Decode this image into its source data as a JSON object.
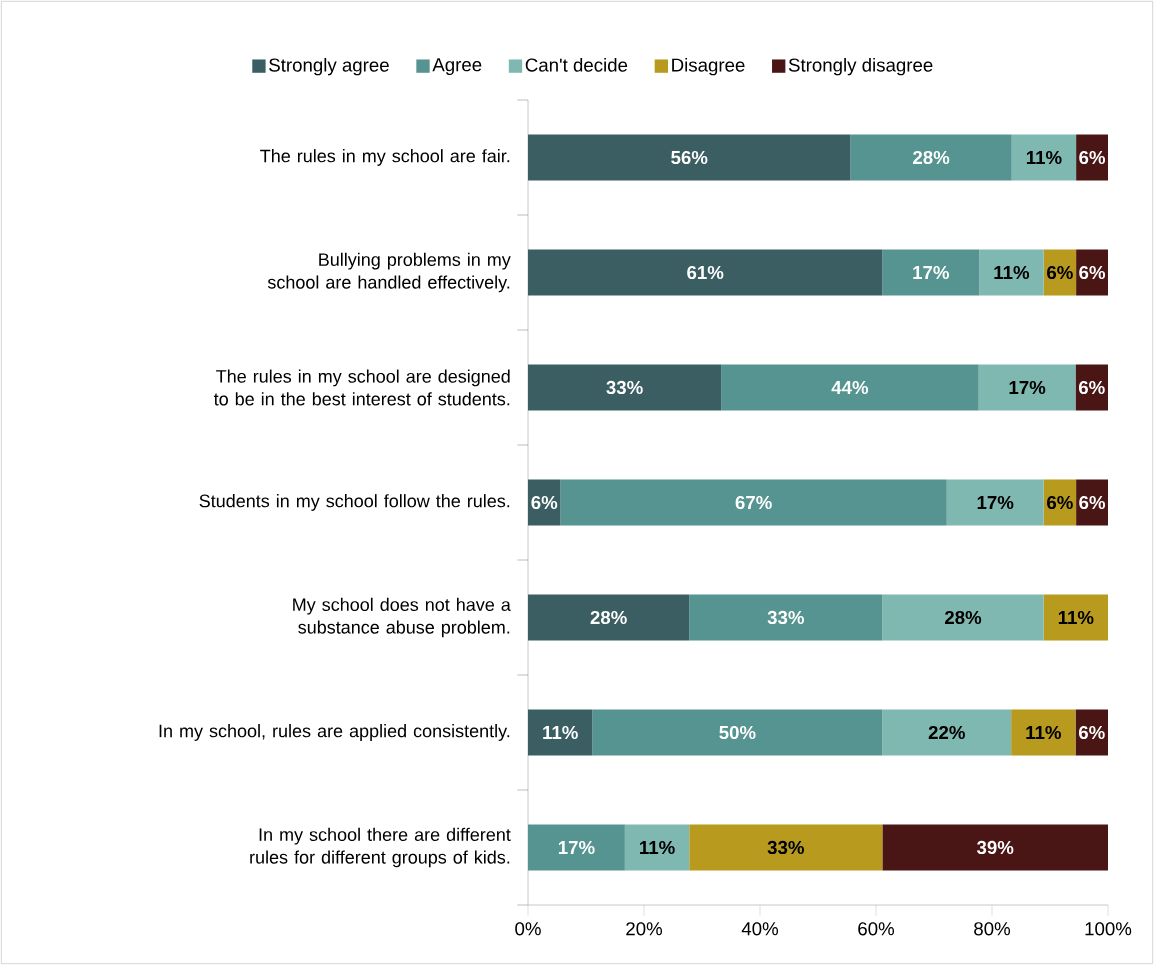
{
  "chart_data": {
    "type": "bar",
    "orientation": "horizontal",
    "stacked": true,
    "categories": [
      "The rules in my school are fair.",
      "Bullying problems in my school are handled effectively.",
      "The rules in my school are designed to be in the best interest of students.",
      "Students in my school follow the rules.",
      "My school does not have a substance abuse problem.",
      "In my school, rules are applied consistently.",
      "In my school there are different rules for different groups of kids."
    ],
    "series": [
      {
        "name": "Strongly agree",
        "color": "#3b5e63",
        "values": [
          55.6,
          61.1,
          33.3,
          5.6,
          27.8,
          11.1,
          0
        ],
        "value_labels": [
          "56%",
          "61%",
          "33%",
          "6%",
          "28%",
          "11%",
          null
        ]
      },
      {
        "name": "Agree",
        "color": "#559490",
        "values": [
          27.8,
          16.7,
          44.4,
          66.6,
          33.3,
          50,
          16.7
        ],
        "value_labels": [
          "28%",
          "17%",
          "44%",
          "67%",
          "33%",
          "50%",
          "17%"
        ]
      },
      {
        "name": "Can't decide",
        "color": "#7fb8b1",
        "values": [
          11.1,
          11.1,
          16.7,
          16.7,
          27.8,
          22.2,
          11.1
        ],
        "value_labels": [
          "11%",
          "11%",
          "17%",
          "17%",
          "28%",
          "22%",
          "11%"
        ]
      },
      {
        "name": "Disagree",
        "color": "#b89a1e",
        "values": [
          0,
          5.6,
          0,
          5.6,
          11.1,
          11.1,
          33.3
        ],
        "value_labels": [
          null,
          "6%",
          null,
          "6%",
          "11%",
          "11%",
          "33%"
        ]
      },
      {
        "name": "Strongly disagree",
        "color": "#4a1515",
        "values": [
          5.5,
          5.5,
          5.6,
          5.5,
          0,
          5.6,
          38.9
        ],
        "value_labels": [
          "6%",
          "6%",
          "6%",
          "6%",
          null,
          "6%",
          "39%"
        ]
      }
    ],
    "xlim": [
      0,
      100
    ],
    "xticks": [
      {
        "value": 0,
        "label": "0%"
      },
      {
        "value": 20,
        "label": "20%"
      },
      {
        "value": 40,
        "label": "40%"
      },
      {
        "value": 60,
        "label": "60%"
      },
      {
        "value": 80,
        "label": "80%"
      },
      {
        "value": 100,
        "label": "100%"
      }
    ],
    "legend": "top",
    "grid": false
  }
}
